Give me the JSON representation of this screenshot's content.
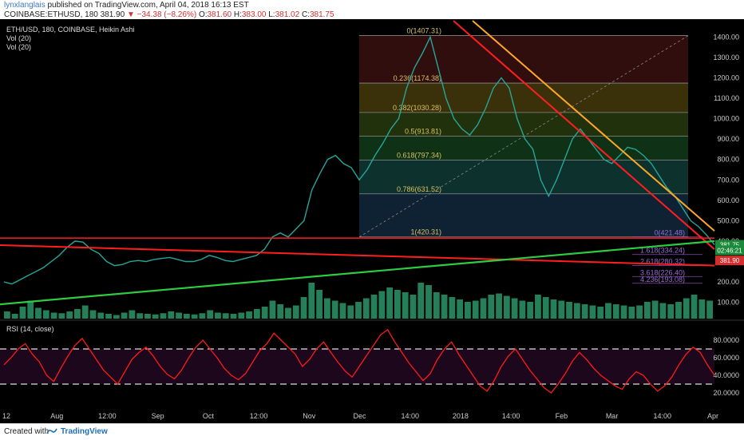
{
  "header": {
    "author": "lynxlanglais",
    "published": "published on TradingView.com, April 04, 2018 16:13 EST",
    "symbol": "COINBASE:ETHUSD, 180",
    "last": "381.90",
    "change": "−34.38 (−8.26%)",
    "o_label": "O:",
    "o_value": "381.60",
    "h_label": "H:",
    "h_value": "383.00",
    "l_label": "L:",
    "l_value": "381.02",
    "c_label": "C:",
    "c_value": "381.75"
  },
  "legend": {
    "main": "ETH/USD, 180, COINBASE, Heikin Ashi",
    "vol1": "Vol (20)",
    "vol2": "Vol (20)",
    "rsi": "RSI (14, close)"
  },
  "footer": {
    "created": "Created with",
    "brand": "TradingView"
  },
  "colors": {
    "background": "#000000",
    "price_line": "#26a69a",
    "resistance_red": "#ff1e1e",
    "resistance_orange": "#ffa726",
    "support_green": "#2ecc40",
    "rsi_line": "#ff1a1a",
    "volume": "#39c48a"
  },
  "chart_data": {
    "type": "line",
    "title": "ETH/USD, 180, COINBASE, Heikin Ashi",
    "xlabel": "",
    "ylabel": "",
    "ylim": [
      20,
      1480
    ],
    "x_tick_labels": [
      "12",
      "Aug",
      "12:00",
      "Sep",
      "Oct",
      "12:00",
      "Nov",
      "Dec",
      "14:00",
      "2018",
      "14:00",
      "Feb",
      "Mar",
      "14:00",
      "Apr"
    ],
    "y_tick_labels": [
      "1400.00",
      "1300.00",
      "1200.00",
      "1100.00",
      "1000.00",
      "900.00",
      "800.00",
      "700.00",
      "600.00",
      "500.00",
      "400.00",
      "300.00",
      "200.00",
      "100.00"
    ],
    "series": [
      {
        "values": [
          200,
          190,
          210,
          230,
          250,
          270,
          300,
          330,
          370,
          400,
          395,
          360,
          340,
          300,
          280,
          285,
          300,
          305,
          300,
          310,
          315,
          320,
          310,
          300,
          300,
          310,
          330,
          320,
          305,
          300,
          310,
          320,
          330,
          360,
          420,
          440,
          420,
          460,
          500,
          650,
          730,
          800,
          820,
          780,
          760,
          700,
          750,
          820,
          880,
          950,
          1000,
          1150,
          1250,
          1320,
          1400,
          1250,
          1100,
          1000,
          950,
          920,
          970,
          1050,
          1150,
          1200,
          1150,
          1000,
          900,
          850,
          700,
          620,
          700,
          800,
          900,
          950,
          900,
          850,
          800,
          780,
          820,
          860,
          850,
          820,
          780,
          720,
          660,
          620,
          560,
          500,
          470,
          430,
          382
        ],
        "color": "#26a69a"
      }
    ],
    "fibonacci": [
      {
        "label": "0(1407.31)",
        "level": 1407.31
      },
      {
        "label": "0.236(1174.38)",
        "level": 1174.38
      },
      {
        "label": "0.382(1030.28)",
        "level": 1030.28
      },
      {
        "label": "0.5(913.81)",
        "level": 913.81
      },
      {
        "label": "0.618(797.34)",
        "level": 797.34
      },
      {
        "label": "0.786(631.52)",
        "level": 631.52
      },
      {
        "label": "1(420.31)",
        "level": 420.31
      }
    ],
    "fib_extension": [
      {
        "label": "0(421.48)",
        "level": 421.48
      },
      {
        "label": "1.618(334.24)",
        "level": 334.24
      },
      {
        "label": "2.618(280.32)",
        "level": 280.32
      },
      {
        "label": "3.618(226.40)",
        "level": 226.4
      },
      {
        "label": "4.236(193.08)",
        "level": 193.08
      }
    ],
    "price_tags": [
      {
        "label": "381.75",
        "level": 381.75,
        "color": "#1b8a3a"
      },
      {
        "label": "02:46:21",
        "level": 355,
        "color": "#1b8a3a"
      },
      {
        "label": "381.90",
        "level": 305,
        "color": "#d32f2f"
      }
    ],
    "rsi": {
      "name": "RSI (14, close)",
      "ylim": [
        0,
        100
      ],
      "y_tick_labels": [
        "80.0000",
        "60.0000",
        "40.0000",
        "20.0000"
      ],
      "bands": [
        70,
        30
      ],
      "values": [
        52,
        60,
        70,
        76,
        64,
        55,
        40,
        33,
        48,
        62,
        74,
        82,
        70,
        58,
        46,
        38,
        30,
        44,
        58,
        66,
        72,
        62,
        50,
        41,
        36,
        46,
        60,
        72,
        80,
        70,
        60,
        48,
        40,
        35,
        42,
        55,
        68,
        76,
        88,
        80,
        72,
        64,
        50,
        58,
        70,
        78,
        66,
        55,
        45,
        38,
        50,
        62,
        74,
        86,
        92,
        78,
        66,
        54,
        44,
        34,
        42,
        58,
        70,
        78,
        64,
        52,
        40,
        28,
        22,
        34,
        50,
        62,
        70,
        58,
        46,
        36,
        26,
        20,
        30,
        42,
        56,
        66,
        58,
        48,
        40,
        34,
        28,
        24,
        36,
        44,
        40,
        30,
        22,
        28,
        38,
        52,
        64,
        72,
        66,
        52,
        40
      ]
    },
    "volume": [
      12,
      8,
      20,
      30,
      18,
      14,
      10,
      9,
      12,
      16,
      22,
      14,
      10,
      8,
      6,
      10,
      14,
      9,
      8,
      7,
      9,
      12,
      10,
      8,
      7,
      9,
      14,
      10,
      9,
      8,
      10,
      12,
      16,
      20,
      30,
      24,
      18,
      22,
      36,
      60,
      48,
      34,
      30,
      26,
      22,
      28,
      34,
      40,
      46,
      52,
      48,
      44,
      40,
      60,
      56,
      44,
      40,
      36,
      32,
      28,
      30,
      34,
      40,
      42,
      38,
      34,
      30,
      28,
      40,
      36,
      32,
      30,
      28,
      26,
      24,
      22,
      20,
      26,
      24,
      22,
      20,
      22,
      28,
      30,
      26,
      24,
      28,
      34,
      40,
      32,
      30
    ]
  }
}
